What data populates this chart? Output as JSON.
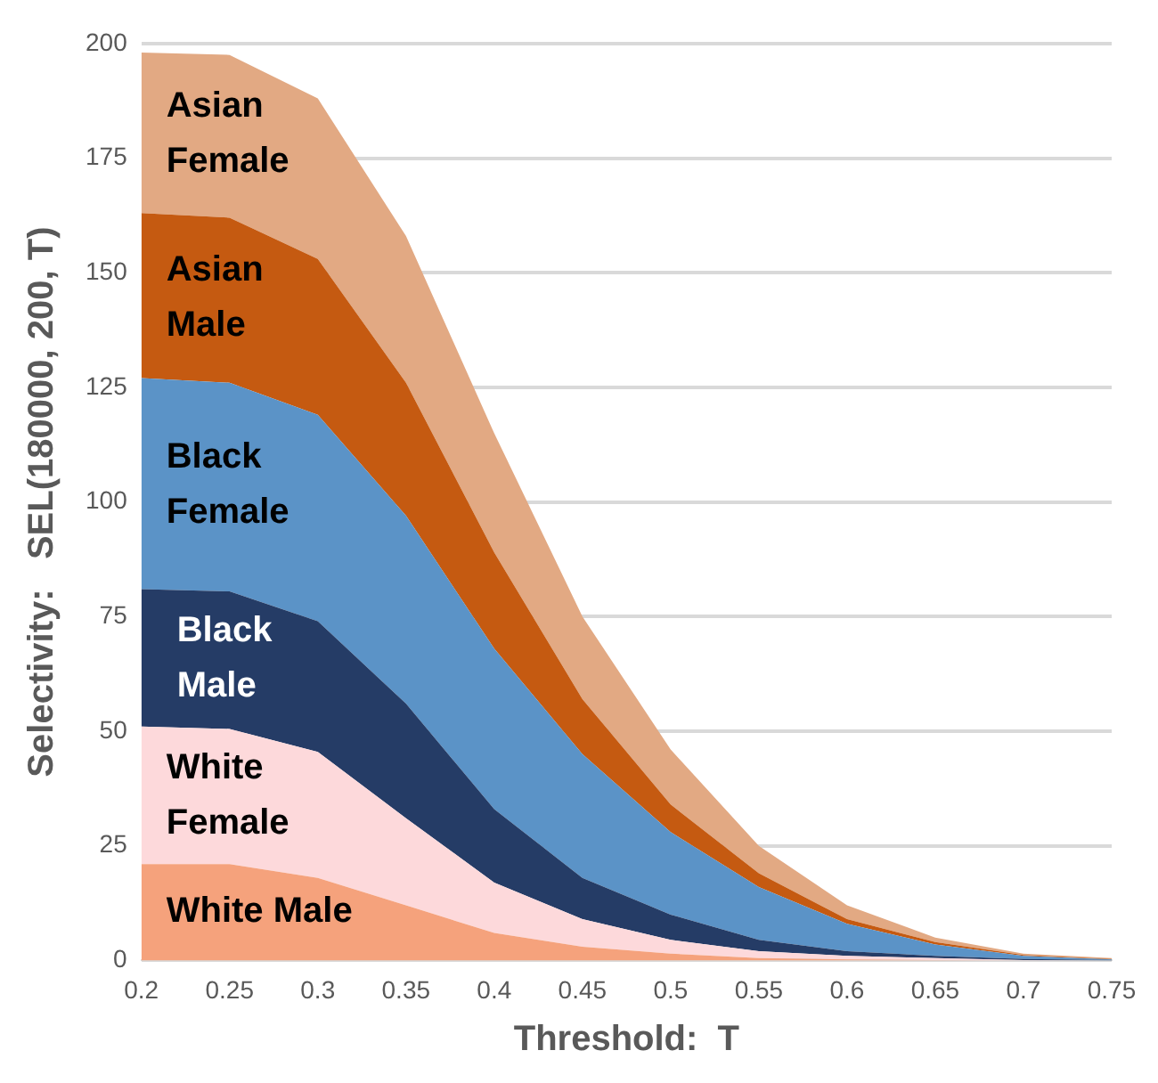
{
  "chart_data": {
    "type": "area",
    "stacked": true,
    "xlabel": "Threshold:  T",
    "ylabel": "Selectivity:   SEL(180000, 200, T)",
    "x": [
      0.2,
      0.25,
      0.3,
      0.35,
      0.4,
      0.45,
      0.5,
      0.55,
      0.6,
      0.65,
      0.7,
      0.75
    ],
    "xlim": [
      0.2,
      0.75
    ],
    "xticks": [
      0.2,
      0.25,
      0.3,
      0.35,
      0.4,
      0.45,
      0.5,
      0.55,
      0.6,
      0.65,
      0.7,
      0.75
    ],
    "ylim": [
      0,
      200
    ],
    "yticks": [
      0,
      25,
      50,
      75,
      100,
      125,
      150,
      175,
      200
    ],
    "grid": "y",
    "legend": false,
    "series": [
      {
        "name": "White Male",
        "color": "#f5a27c",
        "values": [
          21,
          21,
          18,
          12,
          6,
          3,
          1.5,
          0.5,
          0.2,
          0.1,
          0,
          0
        ]
      },
      {
        "name": "White Female",
        "color": "#fdd9db",
        "values": [
          30,
          29.5,
          27.5,
          19,
          11,
          6,
          3,
          1.5,
          0.8,
          0.4,
          0.1,
          0
        ]
      },
      {
        "name": "Black Male",
        "color": "#253c66",
        "values": [
          30,
          30,
          28.5,
          25,
          16,
          9,
          5.5,
          2.5,
          1,
          0.5,
          0.2,
          0.1
        ]
      },
      {
        "name": "Black Female",
        "color": "#5b93c7",
        "values": [
          46,
          45.5,
          45,
          41,
          35,
          27,
          18,
          11.5,
          6,
          2.5,
          0.7,
          0.1
        ]
      },
      {
        "name": "Asian Male",
        "color": "#c55a11",
        "values": [
          36,
          36,
          34,
          29,
          21,
          12,
          6,
          3,
          1,
          0.5,
          0.2,
          0.1
        ]
      },
      {
        "name": "Asian Female",
        "color": "#e2a983",
        "values": [
          35,
          35.5,
          35,
          32,
          26,
          18,
          12,
          6,
          3,
          1,
          0.3,
          0.2
        ]
      }
    ]
  }
}
